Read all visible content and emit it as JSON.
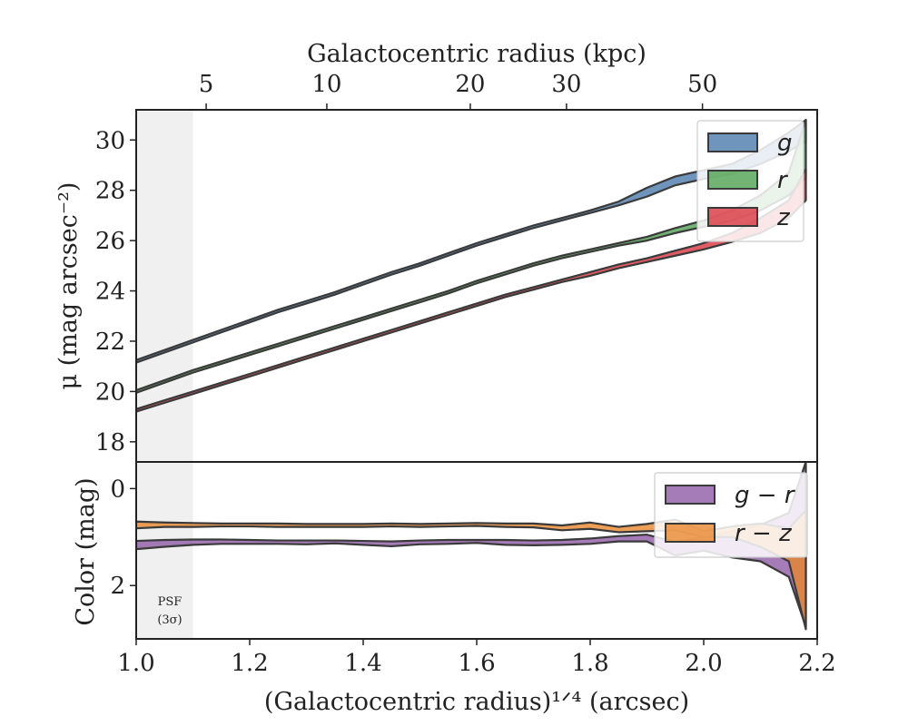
{
  "colors": {
    "g": "#4c7bab",
    "r": "#4fa150",
    "z": "#d9343e",
    "gr": "#8f5aa6",
    "rz": "#e8872e",
    "edge": "#3a3a3a",
    "psf": "#e6e6e6"
  },
  "chart_data": [
    {
      "type": "area",
      "panel": "top",
      "ylabel": "μ (mag arcsec⁻²)",
      "top_xlabel": "Galactocentric radius (kpc)",
      "top_ticks": [
        {
          "x": 1.1233,
          "label": "5"
        },
        {
          "x": 1.3359,
          "label": "10"
        },
        {
          "x": 1.5887,
          "label": "20"
        },
        {
          "x": 1.7582,
          "label": "30"
        },
        {
          "x": 1.9978,
          "label": "50"
        }
      ],
      "xlim": [
        1.0,
        2.2
      ],
      "ylim": [
        31.2,
        17.2
      ],
      "yticks": [
        18,
        20,
        22,
        24,
        26,
        28,
        30
      ],
      "y_inverted": true,
      "psf_region": [
        1.0,
        1.1
      ],
      "legend": {
        "placement": "top-right",
        "entries": [
          "g",
          "r",
          "z"
        ]
      },
      "x": [
        1.0,
        1.05,
        1.1,
        1.15,
        1.2,
        1.25,
        1.3,
        1.35,
        1.4,
        1.45,
        1.5,
        1.55,
        1.6,
        1.65,
        1.7,
        1.75,
        1.8,
        1.85,
        1.9,
        1.95,
        2.0,
        2.05,
        2.1,
        2.15,
        2.18
      ],
      "series": [
        {
          "name": "g",
          "key": "g",
          "lower": [
            21.15,
            21.55,
            21.95,
            22.35,
            22.75,
            23.15,
            23.5,
            23.85,
            24.25,
            24.65,
            25.0,
            25.4,
            25.8,
            26.15,
            26.5,
            26.8,
            27.1,
            27.4,
            27.75,
            28.2,
            28.45,
            28.65,
            29.05,
            29.55,
            29.95
          ],
          "upper": [
            21.25,
            21.65,
            22.05,
            22.45,
            22.85,
            23.25,
            23.6,
            23.95,
            24.35,
            24.75,
            25.1,
            25.5,
            25.9,
            26.25,
            26.6,
            26.9,
            27.2,
            27.55,
            28.1,
            28.55,
            28.8,
            29.05,
            29.6,
            30.3,
            30.8
          ]
        },
        {
          "name": "r",
          "key": "r",
          "lower": [
            19.95,
            20.35,
            20.75,
            21.1,
            21.45,
            21.8,
            22.15,
            22.5,
            22.85,
            23.2,
            23.55,
            23.9,
            24.3,
            24.65,
            25.0,
            25.3,
            25.55,
            25.8,
            26.0,
            26.3,
            26.55,
            26.8,
            27.2,
            27.8,
            28.5
          ],
          "upper": [
            20.05,
            20.45,
            20.85,
            21.2,
            21.55,
            21.9,
            22.25,
            22.6,
            22.95,
            23.3,
            23.65,
            24.0,
            24.4,
            24.75,
            25.1,
            25.4,
            25.65,
            25.9,
            26.15,
            26.5,
            26.8,
            27.2,
            27.8,
            28.7,
            30.8
          ]
        },
        {
          "name": "z",
          "key": "z",
          "lower": [
            19.2,
            19.55,
            19.9,
            20.25,
            20.6,
            20.95,
            21.3,
            21.65,
            22.0,
            22.35,
            22.7,
            23.05,
            23.4,
            23.75,
            24.05,
            24.35,
            24.6,
            24.9,
            25.15,
            25.4,
            25.65,
            25.95,
            26.3,
            26.9,
            27.6
          ],
          "upper": [
            19.3,
            19.65,
            20.0,
            20.35,
            20.7,
            21.05,
            21.4,
            21.75,
            22.1,
            22.45,
            22.8,
            23.15,
            23.5,
            23.85,
            24.15,
            24.45,
            24.75,
            25.05,
            25.3,
            25.6,
            25.9,
            26.3,
            26.9,
            27.6,
            28.85
          ]
        }
      ]
    },
    {
      "type": "area",
      "panel": "bottom",
      "ylabel": "Color (mag)",
      "xlabel": "(Galactocentric radius)¹ᐟ⁴ (arcsec)",
      "xlim": [
        1.0,
        2.2
      ],
      "xticks": [
        1.0,
        1.2,
        1.4,
        1.6,
        1.8,
        2.0,
        2.2
      ],
      "xtick_labels": [
        "1.0",
        "1.2",
        "1.4",
        "1.6",
        "1.8",
        "2.0",
        "2.2"
      ],
      "ylim": [
        -0.55,
        3.1
      ],
      "yticks": [
        0,
        2
      ],
      "psf_region": [
        1.0,
        1.1
      ],
      "psf_annotation": [
        "PSF",
        "(3σ)"
      ],
      "legend": {
        "placement": "top-right",
        "entries": [
          "g − r",
          "r − z"
        ]
      },
      "x": [
        1.0,
        1.05,
        1.1,
        1.15,
        1.2,
        1.25,
        1.3,
        1.35,
        1.4,
        1.45,
        1.5,
        1.55,
        1.6,
        1.65,
        1.7,
        1.75,
        1.8,
        1.85,
        1.9,
        1.95,
        2.0,
        2.05,
        2.1,
        2.15,
        2.18
      ],
      "series": [
        {
          "name": "g − r",
          "key": "gr",
          "lower": [
            1.08,
            1.06,
            1.05,
            1.05,
            1.06,
            1.07,
            1.07,
            1.07,
            1.08,
            1.09,
            1.07,
            1.06,
            1.06,
            1.06,
            1.07,
            1.06,
            1.03,
            0.98,
            0.95,
            1.1,
            1.0,
            0.88,
            0.75,
            0.5,
            -0.55
          ],
          "upper": [
            1.25,
            1.2,
            1.16,
            1.14,
            1.14,
            1.14,
            1.15,
            1.13,
            1.16,
            1.19,
            1.15,
            1.14,
            1.12,
            1.16,
            1.17,
            1.16,
            1.14,
            1.09,
            1.09,
            1.38,
            1.28,
            1.42,
            1.5,
            1.82,
            2.85
          ]
        },
        {
          "name": "r − z",
          "key": "rz",
          "lower": [
            0.68,
            0.7,
            0.71,
            0.72,
            0.72,
            0.72,
            0.73,
            0.73,
            0.73,
            0.72,
            0.73,
            0.72,
            0.71,
            0.72,
            0.72,
            0.76,
            0.7,
            0.79,
            0.73,
            0.64,
            0.88,
            0.78,
            0.72,
            0.82,
            0.45
          ],
          "upper": [
            0.82,
            0.79,
            0.79,
            0.78,
            0.78,
            0.79,
            0.79,
            0.79,
            0.79,
            0.78,
            0.79,
            0.78,
            0.77,
            0.79,
            0.8,
            0.86,
            0.83,
            0.9,
            0.88,
            0.86,
            1.0,
            1.0,
            1.2,
            1.5,
            2.9
          ]
        }
      ]
    }
  ]
}
